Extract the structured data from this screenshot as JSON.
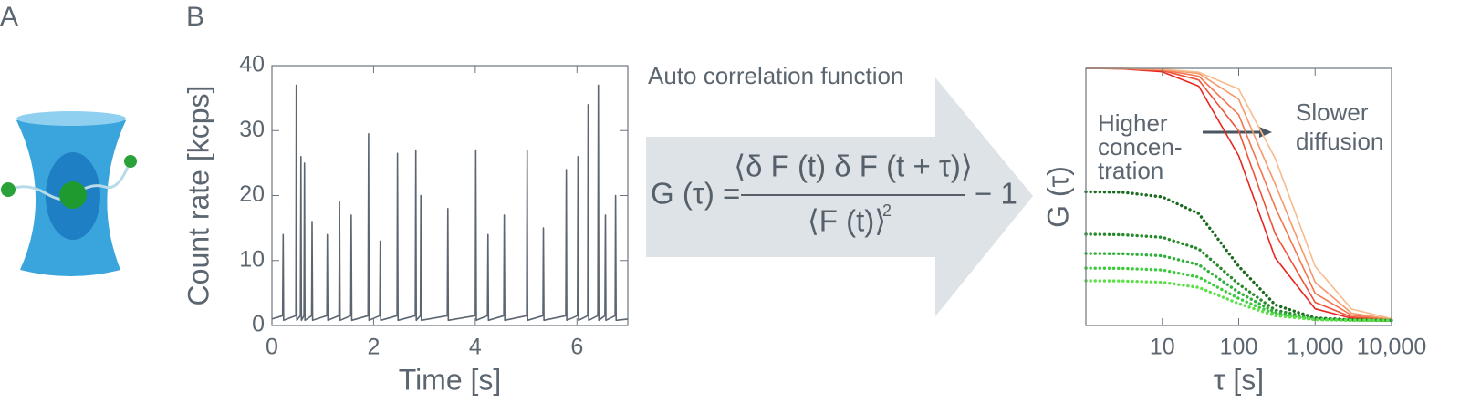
{
  "panels": {
    "a": "A",
    "b": "B"
  },
  "formula": {
    "heading": "Auto correlation function",
    "lhs": "G (τ) =",
    "numerator": "⟨δ F (t)  δ F (t + τ)⟩",
    "denominator": "⟨F (t)⟩",
    "exponent": "2",
    "rhs": "− 1"
  },
  "chart_data": [
    {
      "type": "line",
      "x_label": "Time [s]",
      "y_label": "Count rate [kcps]",
      "xlim": [
        0,
        7
      ],
      "xticks": [
        0,
        2,
        4,
        6
      ],
      "ylim": [
        0,
        40
      ],
      "yticks": [
        0,
        10,
        20,
        30,
        40
      ],
      "x": [
        0,
        0.21,
        0.22,
        0.23,
        0.47,
        0.48,
        0.49,
        0.56,
        0.57,
        0.58,
        0.63,
        0.64,
        0.65,
        0.78,
        0.79,
        0.8,
        1.08,
        1.09,
        1.1,
        1.32,
        1.33,
        1.34,
        1.55,
        1.56,
        1.57,
        1.89,
        1.9,
        1.91,
        2.12,
        2.13,
        2.14,
        2.46,
        2.47,
        2.48,
        2.82,
        2.83,
        2.84,
        2.92,
        2.93,
        2.94,
        3.45,
        3.46,
        3.47,
        4,
        4.01,
        4.02,
        4.24,
        4.25,
        4.26,
        4.56,
        4.57,
        4.58,
        5.01,
        5.02,
        5.03,
        5.33,
        5.34,
        5.35,
        5.78,
        5.79,
        5.8,
        6.01,
        6.02,
        6.03,
        6.21,
        6.22,
        6.23,
        6.41,
        6.42,
        6.43,
        6.55,
        6.56,
        6.57,
        6.75,
        6.76,
        6.77,
        7
      ],
      "series": [
        {
          "color": "#5c6670",
          "values": [
            1,
            1.5,
            14,
            0.8,
            1.5,
            37,
            0.8,
            1.5,
            26,
            0.8,
            1.5,
            25,
            0.8,
            1.5,
            16,
            0.8,
            1.5,
            14,
            0.8,
            1.5,
            19,
            0.8,
            1.5,
            17,
            0.8,
            1.5,
            29.5,
            0.8,
            1.5,
            13,
            0.8,
            1.5,
            26.5,
            0.8,
            1.5,
            27,
            0.8,
            1.5,
            20,
            0.8,
            1.5,
            18,
            0.8,
            1.5,
            27,
            0.8,
            1.5,
            14,
            0.8,
            1.5,
            17,
            0.8,
            1.5,
            27,
            0.8,
            1.5,
            15,
            0.8,
            1.5,
            24,
            0.8,
            1.5,
            26,
            0.8,
            1.5,
            34,
            0.8,
            1.5,
            37,
            0.8,
            1.5,
            17,
            0.8,
            1.5,
            20,
            0.8,
            1
          ]
        }
      ]
    },
    {
      "type": "line",
      "x_label": "τ [s]",
      "y_label": "G (τ)",
      "xscale": "log",
      "xlim": [
        1,
        10000
      ],
      "xticks": [
        10,
        100,
        {
          "value": 1000,
          "label": "1,000"
        },
        {
          "value": 10000,
          "label": "10,000"
        }
      ],
      "ylim": [
        0,
        1
      ],
      "annotations": [
        "Higher",
        "concen-",
        "tration",
        "Slower",
        "diffusion"
      ],
      "x": [
        1,
        3,
        10,
        30,
        100,
        300,
        1000,
        3000,
        10000
      ],
      "series": [
        {
          "color": "#e8261f",
          "style": "solid",
          "values": [
            1.0,
            0.998,
            0.987,
            0.931,
            0.66,
            0.263,
            0.065,
            0.028,
            0.021
          ]
        },
        {
          "color": "#ee5238",
          "style": "solid",
          "values": [
            1.0,
            0.999,
            0.992,
            0.955,
            0.757,
            0.357,
            0.09,
            0.033,
            0.022
          ]
        },
        {
          "color": "#f27650",
          "style": "solid",
          "values": [
            1.0,
            0.999,
            0.994,
            0.97,
            0.82,
            0.46,
            0.125,
            0.04,
            0.023
          ]
        },
        {
          "color": "#f5986a",
          "style": "solid",
          "values": [
            1.0,
            1.0,
            0.996,
            0.98,
            0.88,
            0.55,
            0.168,
            0.048,
            0.024
          ]
        },
        {
          "color": "#f8bb8c",
          "style": "solid",
          "values": [
            1.0,
            1.0,
            0.997,
            0.985,
            0.92,
            0.65,
            0.23,
            0.064,
            0.027
          ]
        },
        {
          "color": "#1b6b1f",
          "style": "dotted",
          "values": [
            0.52,
            0.518,
            0.5,
            0.435,
            0.23,
            0.08,
            0.029,
            0.022,
            0.02
          ]
        },
        {
          "color": "#258a2a",
          "style": "dotted",
          "values": [
            0.355,
            0.353,
            0.343,
            0.298,
            0.161,
            0.06,
            0.026,
            0.021,
            0.02
          ]
        },
        {
          "color": "#2fb03a",
          "style": "dotted",
          "values": [
            0.28,
            0.279,
            0.271,
            0.236,
            0.129,
            0.051,
            0.024,
            0.021,
            0.02
          ]
        },
        {
          "color": "#3fcb3f",
          "style": "dotted",
          "values": [
            0.223,
            0.222,
            0.216,
            0.188,
            0.105,
            0.044,
            0.023,
            0.021,
            0.02
          ]
        },
        {
          "color": "#5ee04a",
          "style": "dotted",
          "values": [
            0.174,
            0.173,
            0.168,
            0.148,
            0.085,
            0.038,
            0.023,
            0.02,
            0.02
          ]
        }
      ]
    }
  ]
}
